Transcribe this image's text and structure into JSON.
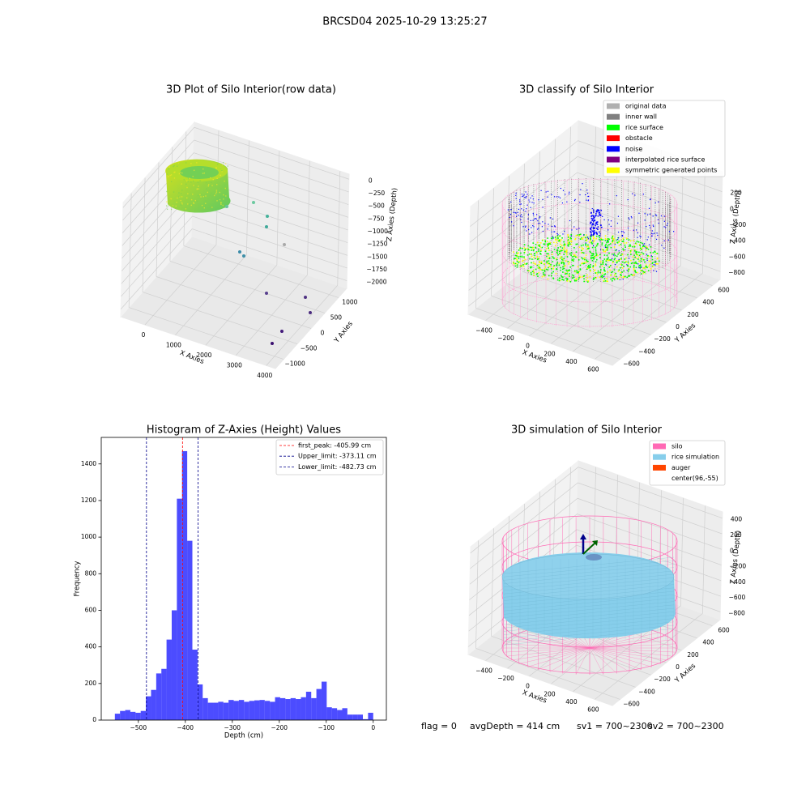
{
  "suptitle": "BRCSD04 2025-10-29 13:25:27",
  "footer": [
    "flag = 0",
    "avgDepth = 414 cm",
    "sv1 = 700~2300",
    "sv2 = 700~2300"
  ],
  "chart_data": [
    {
      "type": "scatter3d",
      "title": "3D Plot of Silo Interior(row data)",
      "xlabel": "X Axies",
      "ylabel": "Y Axies",
      "zlabel": "Z Axies (Depth)",
      "xlim": [
        -800,
        4300
      ],
      "ylim": [
        -1300,
        1300
      ],
      "zlim": [
        -2150,
        100
      ],
      "xticks": [
        0,
        1000,
        2000,
        3000,
        4000
      ],
      "yticks": [
        {
          "value": -1000,
          "label": "−1000"
        },
        {
          "value": -500,
          "label": "−500"
        },
        0,
        500,
        1000
      ],
      "zticks": [
        0,
        {
          "value": -250,
          "label": "−250"
        },
        {
          "value": -500,
          "label": "−500"
        },
        {
          "value": -750,
          "label": "−750"
        },
        {
          "value": -1000,
          "label": "−1000"
        },
        {
          "value": -1250,
          "label": "−1250"
        },
        {
          "value": -1500,
          "label": "−1500"
        },
        {
          "value": -1750,
          "label": "−1750"
        },
        {
          "value": -2000,
          "label": "−2000"
        }
      ],
      "grid": true
    },
    {
      "type": "scatter3d",
      "title": "3D classify of Silo Interior",
      "xlabel": "X Axies",
      "ylabel": "Y Axies",
      "zlabel": "Z Axies (Depth)",
      "xlim": [
        -560,
        760
      ],
      "ylim": [
        -700,
        700
      ],
      "zlim": [
        -900,
        450
      ],
      "xticks": [
        {
          "value": -400,
          "label": "−400"
        },
        {
          "value": -200,
          "label": "−200"
        },
        0,
        200,
        400,
        600
      ],
      "yticks": [
        {
          "value": -600,
          "label": "−600"
        },
        {
          "value": -400,
          "label": "−400"
        },
        {
          "value": -200,
          "label": "−200"
        },
        0,
        200,
        400,
        600
      ],
      "zticks": [
        200,
        0,
        {
          "value": -200,
          "label": "−200"
        },
        {
          "value": -400,
          "label": "−400"
        },
        {
          "value": -600,
          "label": "−600"
        },
        {
          "value": -800,
          "label": "−800"
        }
      ],
      "grid": true,
      "legend_loc": "upper right",
      "legend": [
        {
          "name": "original data",
          "color": "#b0b0b0"
        },
        {
          "name": "inner wall",
          "color": "#808080"
        },
        {
          "name": "rice surface",
          "color": "#00ff00"
        },
        {
          "name": "obstacle",
          "color": "#ff0000"
        },
        {
          "name": "noise",
          "color": "#0000ff"
        },
        {
          "name": "interpolated rice surface",
          "color": "#800080"
        },
        {
          "name": "symmetric generated points",
          "color": "#ffff00"
        }
      ]
    },
    {
      "type": "histogram",
      "title": "Histogram of Z-Axies (Height) Values",
      "xlabel": "Depth (cm)",
      "ylabel": "Frequency",
      "bins": [
        -550,
        -539,
        -528,
        -517,
        -506,
        -495,
        -484,
        -473,
        -462,
        -451,
        -440,
        -429,
        -418,
        -407,
        -396,
        -385,
        -374,
        -363,
        -352,
        -341,
        -330,
        -319,
        -308,
        -297,
        -286,
        -275,
        -264,
        -253,
        -242,
        -231,
        -220,
        -209,
        -198,
        -187,
        -176,
        -165,
        -154,
        -143,
        -132,
        -121,
        -110,
        -99,
        -88,
        -77,
        -66,
        -55,
        -44,
        -33,
        -22,
        -11,
        0
      ],
      "values": [
        35,
        50,
        55,
        45,
        40,
        50,
        130,
        165,
        255,
        280,
        440,
        600,
        1210,
        1470,
        980,
        385,
        195,
        120,
        95,
        95,
        100,
        95,
        110,
        105,
        110,
        100,
        105,
        108,
        110,
        105,
        100,
        125,
        120,
        115,
        120,
        115,
        125,
        155,
        120,
        170,
        210,
        70,
        65,
        55,
        65,
        30,
        30,
        30,
        5,
        40
      ],
      "color": "#0000ff",
      "alpha": 0.7,
      "xlim": [
        -579,
        28
      ],
      "ylim": [
        0,
        1545
      ],
      "xticks": [
        {
          "value": -500,
          "label": "−500"
        },
        {
          "value": -400,
          "label": "−400"
        },
        {
          "value": -300,
          "label": "−300"
        },
        {
          "value": -200,
          "label": "−200"
        },
        {
          "value": -100,
          "label": "−100"
        },
        0
      ],
      "yticks": [
        0,
        200,
        400,
        600,
        800,
        1000,
        1200,
        1400
      ],
      "legend_loc": "upper right",
      "vlines": [
        {
          "name": "first_peak: -405.99 cm",
          "value": -405.99,
          "color": "#ff0000"
        },
        {
          "name": "Upper_limit: -373.11 cm",
          "value": -373.11,
          "color": "#00008b"
        },
        {
          "name": "Lower_limit: -482.73 cm",
          "value": -482.73,
          "color": "#00008b"
        }
      ]
    },
    {
      "type": "surface3d",
      "title": "3D simulation of Silo Interior",
      "xlabel": "X Axies",
      "ylabel": "Y Axies",
      "zlabel": "Z Axies (Depth)",
      "xlim": [
        -560,
        760
      ],
      "ylim": [
        -700,
        700
      ],
      "zlim": [
        -900,
        480
      ],
      "xticks": [
        {
          "value": -400,
          "label": "−400"
        },
        {
          "value": -200,
          "label": "−200"
        },
        0,
        200,
        400,
        600
      ],
      "yticks": [
        {
          "value": -600,
          "label": "−600"
        },
        {
          "value": -400,
          "label": "−400"
        },
        {
          "value": -200,
          "label": "−200"
        },
        0,
        200,
        400,
        600
      ],
      "zticks": [
        400,
        200,
        0,
        {
          "value": -200,
          "label": "−200"
        },
        {
          "value": -400,
          "label": "−400"
        },
        {
          "value": -600,
          "label": "−600"
        },
        {
          "value": -800,
          "label": "−800"
        }
      ],
      "grid": true,
      "legend_loc": "upper right",
      "legend": [
        {
          "name": "silo",
          "color": "#ff69b4"
        },
        {
          "name": "rice simulation",
          "color": "#87ceeb"
        },
        {
          "name": "auger",
          "color": "#ff4500"
        },
        {
          "name": "center(96,-55)",
          "color": "#ffffff"
        }
      ]
    }
  ]
}
